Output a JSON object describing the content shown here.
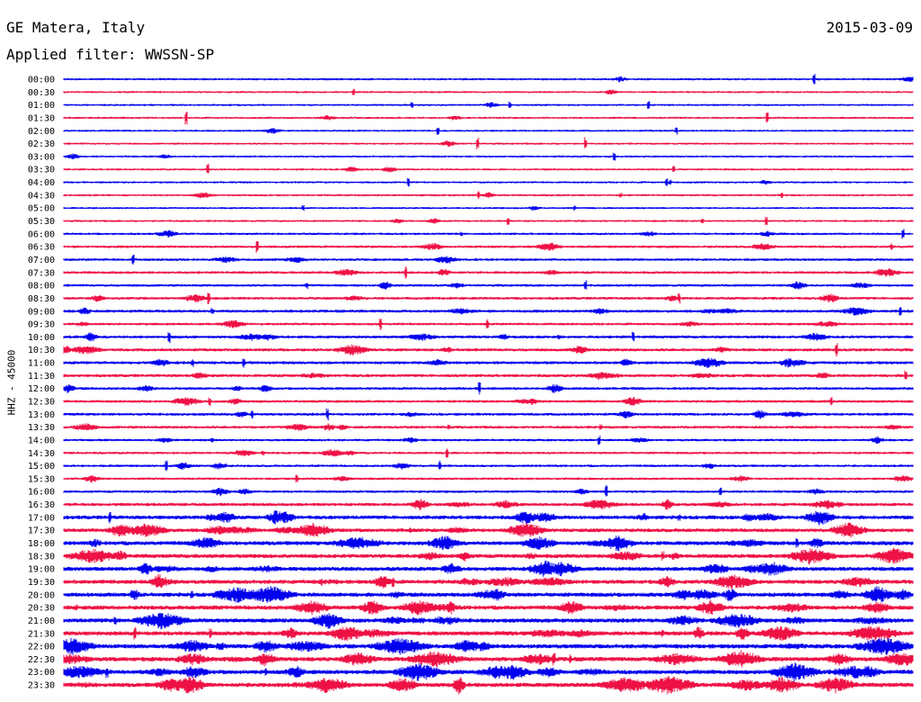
{
  "header": {
    "station": "GE Matera, Italy",
    "date": "2015-03-09",
    "filter_label": "Applied filter: WWSSN-SP"
  },
  "chart_data": {
    "type": "line",
    "title": "GE Matera, Italy",
    "date": "2015-03-09",
    "filter": "Applied filter: WWSSN-SP",
    "ylabel": "HHZ - 45000",
    "colors": [
      "#0000ee",
      "#ee1144"
    ],
    "grid": false,
    "rows": [
      {
        "time": "00:00",
        "color": "#0000ee",
        "activity": 0.15
      },
      {
        "time": "00:30",
        "color": "#ee1144",
        "activity": 0.1
      },
      {
        "time": "01:00",
        "color": "#0000ee",
        "activity": 0.1
      },
      {
        "time": "01:30",
        "color": "#ee1144",
        "activity": 0.12
      },
      {
        "time": "02:00",
        "color": "#0000ee",
        "activity": 0.1
      },
      {
        "time": "02:30",
        "color": "#ee1144",
        "activity": 0.1
      },
      {
        "time": "03:00",
        "color": "#0000ee",
        "activity": 0.12
      },
      {
        "time": "03:30",
        "color": "#ee1144",
        "activity": 0.12
      },
      {
        "time": "04:00",
        "color": "#0000ee",
        "activity": 0.1
      },
      {
        "time": "04:30",
        "color": "#ee1144",
        "activity": 0.15
      },
      {
        "time": "05:00",
        "color": "#0000ee",
        "activity": 0.1
      },
      {
        "time": "05:30",
        "color": "#ee1144",
        "activity": 0.12
      },
      {
        "time": "06:00",
        "color": "#0000ee",
        "activity": 0.2
      },
      {
        "time": "06:30",
        "color": "#ee1144",
        "activity": 0.3
      },
      {
        "time": "07:00",
        "color": "#0000ee",
        "activity": 0.3
      },
      {
        "time": "07:30",
        "color": "#ee1144",
        "activity": 0.3
      },
      {
        "time": "08:00",
        "color": "#0000ee",
        "activity": 0.3
      },
      {
        "time": "08:30",
        "color": "#ee1144",
        "activity": 0.35
      },
      {
        "time": "09:00",
        "color": "#0000ee",
        "activity": 0.4
      },
      {
        "time": "09:30",
        "color": "#ee1144",
        "activity": 0.3
      },
      {
        "time": "10:00",
        "color": "#0000ee",
        "activity": 0.4
      },
      {
        "time": "10:30",
        "color": "#ee1144",
        "activity": 0.45
      },
      {
        "time": "11:00",
        "color": "#0000ee",
        "activity": 0.45
      },
      {
        "time": "11:30",
        "color": "#ee1144",
        "activity": 0.45
      },
      {
        "time": "12:00",
        "color": "#0000ee",
        "activity": 0.35
      },
      {
        "time": "12:30",
        "color": "#ee1144",
        "activity": 0.35
      },
      {
        "time": "13:00",
        "color": "#0000ee",
        "activity": 0.35
      },
      {
        "time": "13:30",
        "color": "#ee1144",
        "activity": 0.35
      },
      {
        "time": "14:00",
        "color": "#0000ee",
        "activity": 0.25
      },
      {
        "time": "14:30",
        "color": "#ee1144",
        "activity": 0.25
      },
      {
        "time": "15:00",
        "color": "#0000ee",
        "activity": 0.25
      },
      {
        "time": "15:30",
        "color": "#ee1144",
        "activity": 0.25
      },
      {
        "time": "16:00",
        "color": "#0000ee",
        "activity": 0.3
      },
      {
        "time": "16:30",
        "color": "#ee1144",
        "activity": 0.5
      },
      {
        "time": "17:00",
        "color": "#0000ee",
        "activity": 0.7
      },
      {
        "time": "17:30",
        "color": "#ee1144",
        "activity": 0.7
      },
      {
        "time": "18:00",
        "color": "#0000ee",
        "activity": 0.8
      },
      {
        "time": "18:30",
        "color": "#ee1144",
        "activity": 0.8
      },
      {
        "time": "19:00",
        "color": "#0000ee",
        "activity": 0.8
      },
      {
        "time": "19:30",
        "color": "#ee1144",
        "activity": 0.8
      },
      {
        "time": "20:00",
        "color": "#0000ee",
        "activity": 0.85
      },
      {
        "time": "20:30",
        "color": "#ee1144",
        "activity": 0.85
      },
      {
        "time": "21:00",
        "color": "#0000ee",
        "activity": 0.85
      },
      {
        "time": "21:30",
        "color": "#ee1144",
        "activity": 0.85
      },
      {
        "time": "22:00",
        "color": "#0000ee",
        "activity": 0.9
      },
      {
        "time": "22:30",
        "color": "#ee1144",
        "activity": 0.9
      },
      {
        "time": "23:00",
        "color": "#0000ee",
        "activity": 0.9
      },
      {
        "time": "23:30",
        "color": "#ee1144",
        "activity": 0.9
      }
    ]
  }
}
